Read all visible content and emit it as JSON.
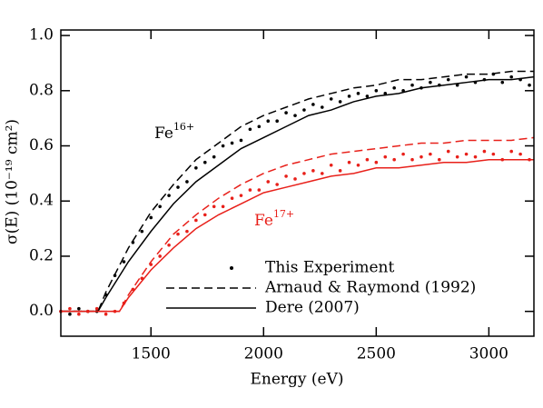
{
  "chart_data": {
    "type": "line",
    "xlabel": "Energy (eV)",
    "ylabel": "σ(E) (10⁻¹⁹ cm²)",
    "xlim": [
      1100,
      3200
    ],
    "ylim": [
      -0.09,
      1.02
    ],
    "xticks": [
      1500,
      2000,
      2500,
      3000
    ],
    "yticks": [
      {
        "value": 0,
        "label": "0.0"
      },
      0.2,
      0.4,
      0.6,
      0.8,
      {
        "value": 1,
        "label": "1.0"
      }
    ],
    "annotations": [
      {
        "text": "Fe",
        "sup": "16+",
        "color": "#000000"
      },
      {
        "text": "Fe",
        "sup": "17+",
        "color": "#e8201a"
      }
    ],
    "series": [
      {
        "name": "This Experiment",
        "color": "#000000",
        "style": "dots",
        "x": [
          1100,
          1140,
          1180,
          1220,
          1260,
          1300,
          1340,
          1380,
          1420,
          1460,
          1500,
          1540,
          1580,
          1620,
          1660,
          1700,
          1740,
          1780,
          1820,
          1860,
          1900,
          1940,
          1980,
          2020,
          2060,
          2100,
          2140,
          2180,
          2220,
          2260,
          2300,
          2340,
          2380,
          2420,
          2460,
          2500,
          2540,
          2580,
          2620,
          2660,
          2700,
          2740,
          2780,
          2820,
          2860,
          2900,
          2940,
          2980,
          3020,
          3060,
          3100,
          3140,
          3180
        ],
        "values": [
          0,
          -0.01,
          0.01,
          0,
          0,
          0.06,
          0.13,
          0.18,
          0.25,
          0.29,
          0.34,
          0.38,
          0.42,
          0.45,
          0.47,
          0.52,
          0.54,
          0.56,
          0.6,
          0.61,
          0.62,
          0.66,
          0.67,
          0.69,
          0.69,
          0.72,
          0.71,
          0.73,
          0.75,
          0.74,
          0.77,
          0.76,
          0.78,
          0.79,
          0.78,
          0.8,
          0.79,
          0.81,
          0.8,
          0.82,
          0.81,
          0.83,
          0.82,
          0.84,
          0.82,
          0.85,
          0.83,
          0.84,
          0.86,
          0.83,
          0.85,
          0.84,
          0.82
        ]
      },
      {
        "name": "Arnaud & Raymond (1992)",
        "color": "#000000",
        "style": "dashed",
        "x": [
          1100,
          1265,
          1300,
          1400,
          1500,
          1600,
          1700,
          1800,
          1900,
          2000,
          2100,
          2200,
          2300,
          2400,
          2500,
          2600,
          2700,
          2800,
          2900,
          3000,
          3100,
          3200
        ],
        "values": [
          0,
          0,
          0.07,
          0.23,
          0.36,
          0.46,
          0.55,
          0.61,
          0.67,
          0.71,
          0.74,
          0.77,
          0.79,
          0.81,
          0.82,
          0.84,
          0.84,
          0.85,
          0.86,
          0.86,
          0.87,
          0.87
        ]
      },
      {
        "name": "Dere (2007)",
        "color": "#000000",
        "style": "solid",
        "x": [
          1100,
          1265,
          1300,
          1400,
          1500,
          1600,
          1700,
          1800,
          1900,
          2000,
          2100,
          2200,
          2300,
          2400,
          2500,
          2600,
          2700,
          2800,
          2900,
          3000,
          3100,
          3200
        ],
        "values": [
          0,
          0,
          0.05,
          0.18,
          0.29,
          0.39,
          0.47,
          0.53,
          0.59,
          0.63,
          0.67,
          0.71,
          0.73,
          0.76,
          0.78,
          0.79,
          0.81,
          0.82,
          0.83,
          0.84,
          0.84,
          0.85
        ]
      },
      {
        "color": "#e8201a",
        "style": "dots",
        "x": [
          1100,
          1140,
          1180,
          1220,
          1260,
          1300,
          1340,
          1380,
          1420,
          1460,
          1500,
          1540,
          1580,
          1620,
          1660,
          1700,
          1740,
          1780,
          1820,
          1860,
          1900,
          1940,
          1980,
          2020,
          2060,
          2100,
          2140,
          2180,
          2220,
          2260,
          2300,
          2340,
          2380,
          2420,
          2460,
          2500,
          2540,
          2580,
          2620,
          2660,
          2700,
          2740,
          2780,
          2820,
          2860,
          2900,
          2940,
          2980,
          3020,
          3060,
          3100,
          3140,
          3180
        ],
        "values": [
          0,
          0.01,
          -0.01,
          0,
          0.01,
          -0.01,
          0,
          0.03,
          0.08,
          0.12,
          0.17,
          0.2,
          0.24,
          0.28,
          0.29,
          0.33,
          0.35,
          0.38,
          0.38,
          0.41,
          0.42,
          0.44,
          0.44,
          0.47,
          0.46,
          0.49,
          0.48,
          0.5,
          0.51,
          0.5,
          0.53,
          0.51,
          0.54,
          0.53,
          0.55,
          0.54,
          0.56,
          0.55,
          0.57,
          0.55,
          0.56,
          0.57,
          0.55,
          0.58,
          0.56,
          0.57,
          0.56,
          0.58,
          0.57,
          0.55,
          0.58,
          0.57,
          0.55
        ]
      },
      {
        "color": "#e8201a",
        "style": "dashed",
        "x": [
          1100,
          1360,
          1400,
          1500,
          1600,
          1700,
          1800,
          1900,
          2000,
          2100,
          2200,
          2300,
          2400,
          2500,
          2600,
          2700,
          2800,
          2900,
          3000,
          3100,
          3200
        ],
        "values": [
          0,
          0,
          0.06,
          0.18,
          0.28,
          0.35,
          0.41,
          0.46,
          0.5,
          0.53,
          0.55,
          0.57,
          0.58,
          0.59,
          0.6,
          0.61,
          0.61,
          0.62,
          0.62,
          0.62,
          0.63
        ]
      },
      {
        "color": "#e8201a",
        "style": "solid",
        "x": [
          1100,
          1360,
          1400,
          1500,
          1600,
          1700,
          1800,
          1900,
          2000,
          2100,
          2200,
          2300,
          2400,
          2500,
          2600,
          2700,
          2800,
          2900,
          3000,
          3100,
          3200
        ],
        "values": [
          0,
          0,
          0.05,
          0.15,
          0.23,
          0.3,
          0.35,
          0.39,
          0.43,
          0.45,
          0.47,
          0.49,
          0.5,
          0.52,
          0.52,
          0.53,
          0.54,
          0.54,
          0.55,
          0.55,
          0.55
        ]
      }
    ]
  }
}
